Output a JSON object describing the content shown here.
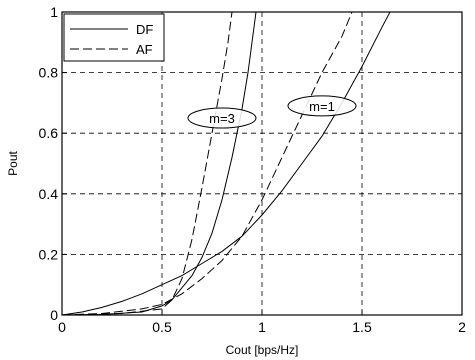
{
  "chart_data": {
    "type": "line",
    "title": "",
    "xlabel": "Cout [bps/Hz]",
    "ylabel": "Pout",
    "xlim": [
      0,
      2
    ],
    "ylim": [
      0,
      1
    ],
    "xticks": [
      "0",
      "0.5",
      "1",
      "1.5",
      "2"
    ],
    "yticks": [
      "0",
      "0.2",
      "0.4",
      "0.6",
      "0.8",
      "1"
    ],
    "grid": true,
    "legend_position": "top-left",
    "series": [
      {
        "name": "DF",
        "style": "solid",
        "group": "m=1",
        "points": [
          [
            0,
            0
          ],
          [
            0.1,
            0.01
          ],
          [
            0.2,
            0.025
          ],
          [
            0.3,
            0.045
          ],
          [
            0.4,
            0.07
          ],
          [
            0.5,
            0.1
          ],
          [
            0.6,
            0.13
          ],
          [
            0.7,
            0.17
          ],
          [
            0.8,
            0.21
          ],
          [
            0.9,
            0.26
          ],
          [
            1.0,
            0.33
          ],
          [
            1.1,
            0.41
          ],
          [
            1.2,
            0.5
          ],
          [
            1.3,
            0.59
          ],
          [
            1.4,
            0.7
          ],
          [
            1.5,
            0.82
          ],
          [
            1.6,
            0.95
          ],
          [
            1.64,
            1.0
          ]
        ]
      },
      {
        "name": "AF",
        "style": "dashed",
        "group": "m=1",
        "points": [
          [
            0,
            0
          ],
          [
            0.2,
            0.005
          ],
          [
            0.4,
            0.02
          ],
          [
            0.5,
            0.035
          ],
          [
            0.6,
            0.07
          ],
          [
            0.7,
            0.12
          ],
          [
            0.8,
            0.18
          ],
          [
            0.9,
            0.26
          ],
          [
            1.0,
            0.38
          ],
          [
            1.1,
            0.52
          ],
          [
            1.2,
            0.66
          ],
          [
            1.3,
            0.8
          ],
          [
            1.4,
            0.92
          ],
          [
            1.45,
            1.0
          ]
        ]
      },
      {
        "name": "DF",
        "style": "solid",
        "group": "m=3",
        "points": [
          [
            0,
            0
          ],
          [
            0.2,
            0.002
          ],
          [
            0.4,
            0.01
          ],
          [
            0.5,
            0.03
          ],
          [
            0.55,
            0.05
          ],
          [
            0.6,
            0.09
          ],
          [
            0.65,
            0.13
          ],
          [
            0.7,
            0.19
          ],
          [
            0.75,
            0.27
          ],
          [
            0.8,
            0.38
          ],
          [
            0.85,
            0.52
          ],
          [
            0.9,
            0.68
          ],
          [
            0.93,
            0.8
          ],
          [
            0.95,
            0.9
          ],
          [
            0.97,
            1.0
          ]
        ]
      },
      {
        "name": "AF",
        "style": "dashed",
        "group": "m=3",
        "points": [
          [
            0,
            0
          ],
          [
            0.3,
            0.005
          ],
          [
            0.5,
            0.02
          ],
          [
            0.55,
            0.05
          ],
          [
            0.6,
            0.12
          ],
          [
            0.65,
            0.25
          ],
          [
            0.7,
            0.42
          ],
          [
            0.75,
            0.6
          ],
          [
            0.8,
            0.78
          ],
          [
            0.83,
            0.9
          ],
          [
            0.85,
            1.0
          ]
        ]
      }
    ],
    "annotations": [
      {
        "label": "m=3",
        "x": 0.8,
        "y": 0.65
      },
      {
        "label": "m=1",
        "x": 1.3,
        "y": 0.69
      }
    ]
  }
}
